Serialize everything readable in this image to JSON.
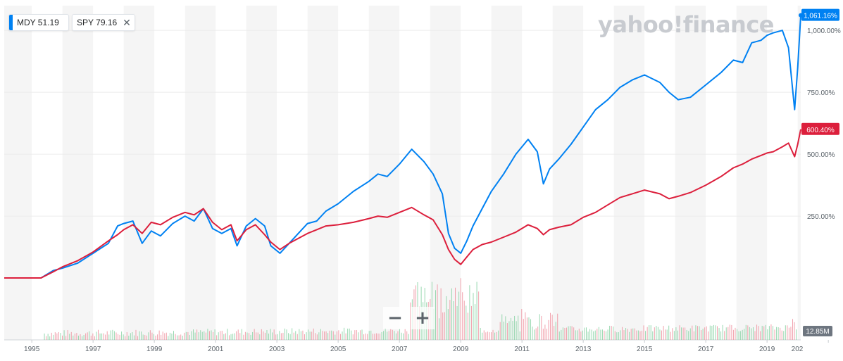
{
  "legend": {
    "mdy": {
      "symbol": "MDY",
      "value": "51.19",
      "color": "#0081f2"
    },
    "spy": {
      "symbol": "SPY",
      "value": "79.16",
      "color": "#dc1f3c"
    },
    "close_icon": "close-icon"
  },
  "watermark": "yahoo!finance",
  "zoom": {
    "minus": "−",
    "plus": "+"
  },
  "chart_data": {
    "type": "line",
    "x_ticks": [
      "1995",
      "1997",
      "1999",
      "2001",
      "2003",
      "2005",
      "2007",
      "2009",
      "2011",
      "2013",
      "2015",
      "2017",
      "2019",
      "202"
    ],
    "y_ticks": [
      "1,000.00%",
      "750.00%",
      "500.00%",
      "250.00%"
    ],
    "ylim": [
      -250,
      1100
    ],
    "xlim": [
      1994.1,
      2020.1
    ],
    "grid": true,
    "legend_position": "top-left",
    "volume_label": "12.85M",
    "series": [
      {
        "name": "MDY",
        "color": "#0081f2",
        "end_label": "1,061.16%",
        "x": [
          1994.1,
          1995.3,
          1995.7,
          1996.0,
          1996.5,
          1997.0,
          1997.5,
          1997.8,
          1998.0,
          1998.3,
          1998.6,
          1998.9,
          1999.2,
          1999.6,
          2000.0,
          2000.3,
          2000.6,
          2000.9,
          2001.2,
          2001.5,
          2001.7,
          2002.0,
          2002.3,
          2002.6,
          2002.8,
          2003.1,
          2003.4,
          2003.7,
          2004.0,
          2004.3,
          2004.6,
          2005.0,
          2005.5,
          2006.0,
          2006.3,
          2006.6,
          2007.0,
          2007.4,
          2007.8,
          2008.1,
          2008.4,
          2008.6,
          2008.8,
          2009.0,
          2009.2,
          2009.4,
          2009.7,
          2010.0,
          2010.4,
          2010.8,
          2011.2,
          2011.5,
          2011.7,
          2011.9,
          2012.2,
          2012.6,
          2013.0,
          2013.4,
          2013.8,
          2014.2,
          2014.6,
          2015.0,
          2015.5,
          2015.8,
          2016.1,
          2016.5,
          2017.0,
          2017.5,
          2017.9,
          2018.2,
          2018.5,
          2018.8,
          2019.0,
          2019.2,
          2019.5,
          2019.7,
          2019.9,
          2020.0,
          2020.1
        ],
        "values": [
          0,
          0,
          30,
          40,
          60,
          100,
          140,
          210,
          220,
          230,
          140,
          190,
          170,
          220,
          250,
          230,
          280,
          200,
          180,
          200,
          130,
          210,
          240,
          210,
          130,
          100,
          140,
          180,
          220,
          230,
          270,
          300,
          350,
          390,
          420,
          410,
          460,
          520,
          470,
          420,
          340,
          180,
          120,
          100,
          150,
          210,
          280,
          350,
          420,
          500,
          560,
          510,
          380,
          440,
          480,
          540,
          610,
          680,
          720,
          770,
          800,
          820,
          790,
          750,
          720,
          730,
          780,
          830,
          880,
          870,
          950,
          960,
          980,
          990,
          1000,
          930,
          680,
          850,
          1061.16
        ]
      },
      {
        "name": "SPY",
        "color": "#dc1f3c",
        "end_label": "600.40%",
        "x": [
          1994.1,
          1995.3,
          1995.7,
          1996.0,
          1996.5,
          1997.0,
          1997.5,
          1997.8,
          1998.0,
          1998.3,
          1998.6,
          1998.9,
          1999.2,
          1999.6,
          2000.0,
          2000.3,
          2000.6,
          2000.9,
          2001.2,
          2001.5,
          2001.7,
          2002.0,
          2002.3,
          2002.6,
          2002.8,
          2003.1,
          2003.4,
          2003.7,
          2004.0,
          2004.3,
          2004.6,
          2005.0,
          2005.5,
          2006.0,
          2006.3,
          2006.6,
          2007.0,
          2007.4,
          2007.8,
          2008.1,
          2008.4,
          2008.6,
          2008.8,
          2009.0,
          2009.2,
          2009.4,
          2009.7,
          2010.0,
          2010.4,
          2010.8,
          2011.2,
          2011.5,
          2011.7,
          2011.9,
          2012.2,
          2012.6,
          2013.0,
          2013.4,
          2013.8,
          2014.2,
          2014.6,
          2015.0,
          2015.5,
          2015.8,
          2016.1,
          2016.5,
          2017.0,
          2017.5,
          2017.9,
          2018.2,
          2018.5,
          2018.8,
          2019.0,
          2019.2,
          2019.5,
          2019.7,
          2019.9,
          2020.0,
          2020.1
        ],
        "values": [
          0,
          0,
          25,
          45,
          70,
          105,
          150,
          175,
          195,
          215,
          180,
          225,
          215,
          245,
          265,
          255,
          280,
          225,
          195,
          215,
          150,
          195,
          215,
          175,
          145,
          115,
          140,
          160,
          180,
          195,
          210,
          215,
          225,
          240,
          250,
          245,
          265,
          285,
          255,
          235,
          175,
          115,
          75,
          55,
          85,
          115,
          135,
          145,
          165,
          185,
          215,
          200,
          175,
          195,
          205,
          215,
          245,
          265,
          295,
          325,
          340,
          355,
          340,
          320,
          330,
          345,
          375,
          410,
          445,
          460,
          480,
          495,
          505,
          510,
          530,
          545,
          490,
          540,
          600.4
        ]
      }
    ]
  }
}
